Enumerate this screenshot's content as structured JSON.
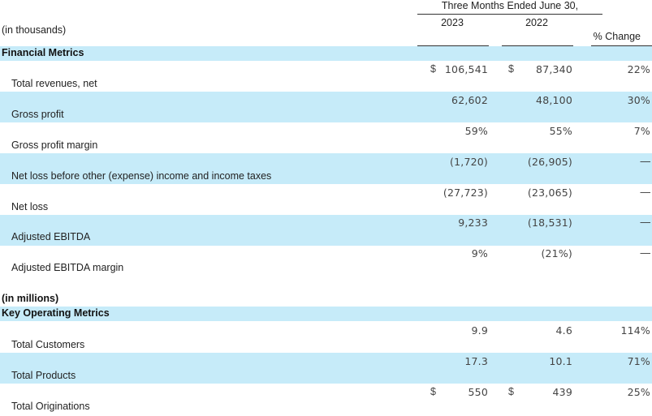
{
  "header": {
    "period": "Three Months Ended June 30,",
    "year_2023": "2023",
    "year_2022": "2022",
    "units": "(in thousands)",
    "change": "% Change"
  },
  "financial": {
    "title": "Financial Metrics",
    "rows": [
      {
        "label": "Total revenues, net",
        "v2023": "106,541",
        "v2022": "87,340",
        "change": "22%",
        "currency": "$"
      },
      {
        "label": "Gross profit",
        "v2023": "62,602",
        "v2022": "48,100",
        "change": "30%",
        "currency": ""
      },
      {
        "label": "Gross profit margin",
        "v2023": "59%",
        "v2022": "55%",
        "change": "7%",
        "currency": ""
      },
      {
        "label": "Net loss before other (expense) income and income taxes",
        "v2023": "(1,720)",
        "v2022": "(26,905)",
        "change": "—",
        "currency": ""
      },
      {
        "label": "Net loss",
        "v2023": "(27,723)",
        "v2022": "(23,065)",
        "change": "—",
        "currency": ""
      },
      {
        "label": "Adjusted EBITDA",
        "v2023": "9,233",
        "v2022": "(18,531)",
        "change": "—",
        "currency": ""
      },
      {
        "label": "Adjusted EBITDA margin",
        "v2023": "9%",
        "v2022": "(21%)",
        "change": "—",
        "currency": ""
      }
    ]
  },
  "operating": {
    "units": "(in millions)",
    "title": "Key Operating Metrics",
    "rows": [
      {
        "label": "Total Customers",
        "v2023": "9.9",
        "v2022": "4.6",
        "change": "114%",
        "currency": ""
      },
      {
        "label": "Total Products",
        "v2023": "17.3",
        "v2022": "10.1",
        "change": "71%",
        "currency": ""
      },
      {
        "label": "Total Originations",
        "v2023": "550",
        "v2022": "439",
        "change": "25%",
        "currency": "$"
      }
    ]
  },
  "currency_symbol": "$"
}
